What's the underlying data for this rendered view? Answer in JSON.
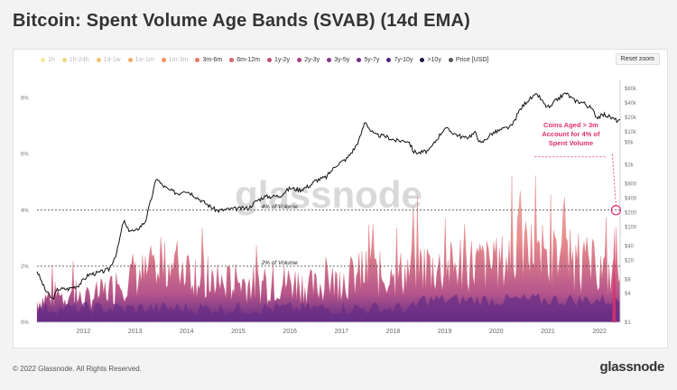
{
  "title": "Bitcoin: Spent Volume Age Bands (SVAB) (14d EMA)",
  "reset_zoom_label": "Reset zoom",
  "footer": {
    "copyright": "© 2022 Glassnode. All Rights Reserved.",
    "logo": "glassnode"
  },
  "watermark": "glassnode",
  "chart_data": {
    "type": "area",
    "legend": [
      {
        "name": "1h",
        "color": "#f4e99b",
        "active": false
      },
      {
        "name": "1h-24h",
        "color": "#f2d680",
        "active": false
      },
      {
        "name": "1d-1w",
        "color": "#f0c36f",
        "active": false
      },
      {
        "name": "1w-1m",
        "color": "#efab60",
        "active": false
      },
      {
        "name": "1m-3m",
        "color": "#ee9259",
        "active": false
      },
      {
        "name": "3m-6m",
        "color": "#e87762",
        "active": true
      },
      {
        "name": "6m-12m",
        "color": "#d8626e",
        "active": true
      },
      {
        "name": "1y-2y",
        "color": "#c24e7a",
        "active": true
      },
      {
        "name": "2y-3y",
        "color": "#a83f85",
        "active": true
      },
      {
        "name": "3y-5y",
        "color": "#8b3489",
        "active": true
      },
      {
        "name": "5y-7y",
        "color": "#6d2d86",
        "active": true
      },
      {
        "name": "7y-10y",
        "color": "#4e2778",
        "active": true
      },
      {
        "name": ">10y",
        "color": "#1f1646",
        "active": true
      },
      {
        "name": "Price [USD]",
        "color": "#555555",
        "active": true
      }
    ],
    "x_ticks": [
      "2012",
      "2013",
      "2014",
      "2015",
      "2016",
      "2017",
      "2018",
      "2019",
      "2020",
      "2021",
      "2022"
    ],
    "y_left_ticks": [
      "0%",
      "2%",
      "4%",
      "6%",
      "8%"
    ],
    "y_left_range": [
      0,
      8.5
    ],
    "y_right_ticks": [
      "$1",
      "$4",
      "$8",
      "$20",
      "$40",
      "$100",
      "$200",
      "$400",
      "$800",
      "$2k",
      "$6k",
      "$10k",
      "$20k",
      "$40k",
      "$80k"
    ],
    "y_right_scale": "log",
    "y_right_range": [
      1,
      100000
    ],
    "year_range": [
      2011.6,
      2022.9
    ],
    "reference_lines": [
      {
        "value": 4,
        "label": "4% of Volume"
      },
      {
        "value": 2,
        "label": "2% of Volume"
      }
    ],
    "annotation": {
      "text": [
        "Coins Aged > 3m",
        "Account for 4% of",
        "Spent Volume"
      ],
      "color": "#e0306a"
    },
    "price_series": [
      [
        2011.6,
        12
      ],
      [
        2011.75,
        5
      ],
      [
        2011.9,
        3
      ],
      [
        2012.0,
        5
      ],
      [
        2012.2,
        5
      ],
      [
        2012.4,
        6
      ],
      [
        2012.6,
        10
      ],
      [
        2012.8,
        11
      ],
      [
        2013.0,
        13
      ],
      [
        2013.15,
        30
      ],
      [
        2013.28,
        140
      ],
      [
        2013.35,
        90
      ],
      [
        2013.5,
        80
      ],
      [
        2013.7,
        130
      ],
      [
        2013.85,
        550
      ],
      [
        2013.92,
        1100
      ],
      [
        2014.0,
        800
      ],
      [
        2014.15,
        600
      ],
      [
        2014.35,
        500
      ],
      [
        2014.45,
        600
      ],
      [
        2014.6,
        500
      ],
      [
        2014.8,
        350
      ],
      [
        2015.0,
        250
      ],
      [
        2015.1,
        220
      ],
      [
        2015.4,
        240
      ],
      [
        2015.7,
        250
      ],
      [
        2015.85,
        350
      ],
      [
        2016.0,
        430
      ],
      [
        2016.3,
        450
      ],
      [
        2016.5,
        650
      ],
      [
        2016.7,
        600
      ],
      [
        2016.9,
        750
      ],
      [
        2017.0,
        950
      ],
      [
        2017.2,
        1100
      ],
      [
        2017.4,
        2000
      ],
      [
        2017.6,
        2700
      ],
      [
        2017.75,
        4400
      ],
      [
        2017.85,
        7000
      ],
      [
        2017.96,
        17000
      ],
      [
        2018.05,
        11000
      ],
      [
        2018.15,
        8500
      ],
      [
        2018.35,
        8000
      ],
      [
        2018.55,
        6500
      ],
      [
        2018.8,
        6400
      ],
      [
        2018.9,
        3800
      ],
      [
        2019.0,
        3600
      ],
      [
        2019.2,
        4000
      ],
      [
        2019.35,
        7000
      ],
      [
        2019.5,
        12000
      ],
      [
        2019.7,
        9000
      ],
      [
        2019.9,
        7300
      ],
      [
        2020.1,
        9500
      ],
      [
        2020.2,
        5500
      ],
      [
        2020.4,
        9000
      ],
      [
        2020.6,
        11000
      ],
      [
        2020.8,
        13000
      ],
      [
        2020.95,
        28000
      ],
      [
        2021.1,
        45000
      ],
      [
        2021.3,
        60000
      ],
      [
        2021.45,
        35000
      ],
      [
        2021.55,
        32000
      ],
      [
        2021.65,
        45000
      ],
      [
        2021.85,
        65000
      ],
      [
        2022.0,
        46000
      ],
      [
        2022.2,
        40000
      ],
      [
        2022.35,
        30000
      ],
      [
        2022.45,
        20000
      ],
      [
        2022.6,
        23000
      ],
      [
        2022.75,
        19000
      ],
      [
        2022.85,
        17000
      ],
      [
        2022.9,
        16500
      ]
    ],
    "spent_volume_envelope": [
      [
        2011.6,
        1.0
      ],
      [
        2012.0,
        1.4
      ],
      [
        2012.5,
        1.1
      ],
      [
        2013.0,
        1.6
      ],
      [
        2013.5,
        2.4
      ],
      [
        2013.9,
        2.2
      ],
      [
        2014.2,
        2.9
      ],
      [
        2014.6,
        2.6
      ],
      [
        2015.0,
        1.8
      ],
      [
        2015.5,
        2.0
      ],
      [
        2016.0,
        1.8
      ],
      [
        2016.5,
        2.0
      ],
      [
        2017.0,
        1.7
      ],
      [
        2017.5,
        2.1
      ],
      [
        2018.0,
        2.4
      ],
      [
        2018.5,
        2.2
      ],
      [
        2019.0,
        2.8
      ],
      [
        2019.5,
        2.6
      ],
      [
        2020.0,
        2.9
      ],
      [
        2020.5,
        2.7
      ],
      [
        2021.0,
        3.6
      ],
      [
        2021.5,
        3.2
      ],
      [
        2022.0,
        3.0
      ],
      [
        2022.5,
        2.6
      ],
      [
        2022.9,
        2.0
      ]
    ],
    "spent_volume_peaks": [
      [
        2012.3,
        2.4
      ],
      [
        2013.15,
        2.3
      ],
      [
        2013.5,
        3.3
      ],
      [
        2013.8,
        3.6
      ],
      [
        2014.0,
        4.0
      ],
      [
        2014.5,
        3.4
      ],
      [
        2014.8,
        3.6
      ],
      [
        2015.1,
        2.5
      ],
      [
        2015.45,
        2.3
      ],
      [
        2016.0,
        2.6
      ],
      [
        2016.6,
        2.4
      ],
      [
        2017.2,
        3.0
      ],
      [
        2017.9,
        3.3
      ],
      [
        2018.1,
        5.9
      ],
      [
        2018.5,
        3.1
      ],
      [
        2018.9,
        6.0
      ],
      [
        2019.2,
        4.6
      ],
      [
        2019.5,
        4.2
      ],
      [
        2019.8,
        3.8
      ],
      [
        2020.2,
        3.9
      ],
      [
        2020.5,
        3.7
      ],
      [
        2020.8,
        6.2
      ],
      [
        2020.95,
        8.2
      ],
      [
        2021.3,
        5.8
      ],
      [
        2021.55,
        5.5
      ],
      [
        2021.8,
        4.6
      ],
      [
        2022.1,
        4.2
      ],
      [
        2022.4,
        3.6
      ],
      [
        2022.82,
        3.7
      ]
    ]
  }
}
